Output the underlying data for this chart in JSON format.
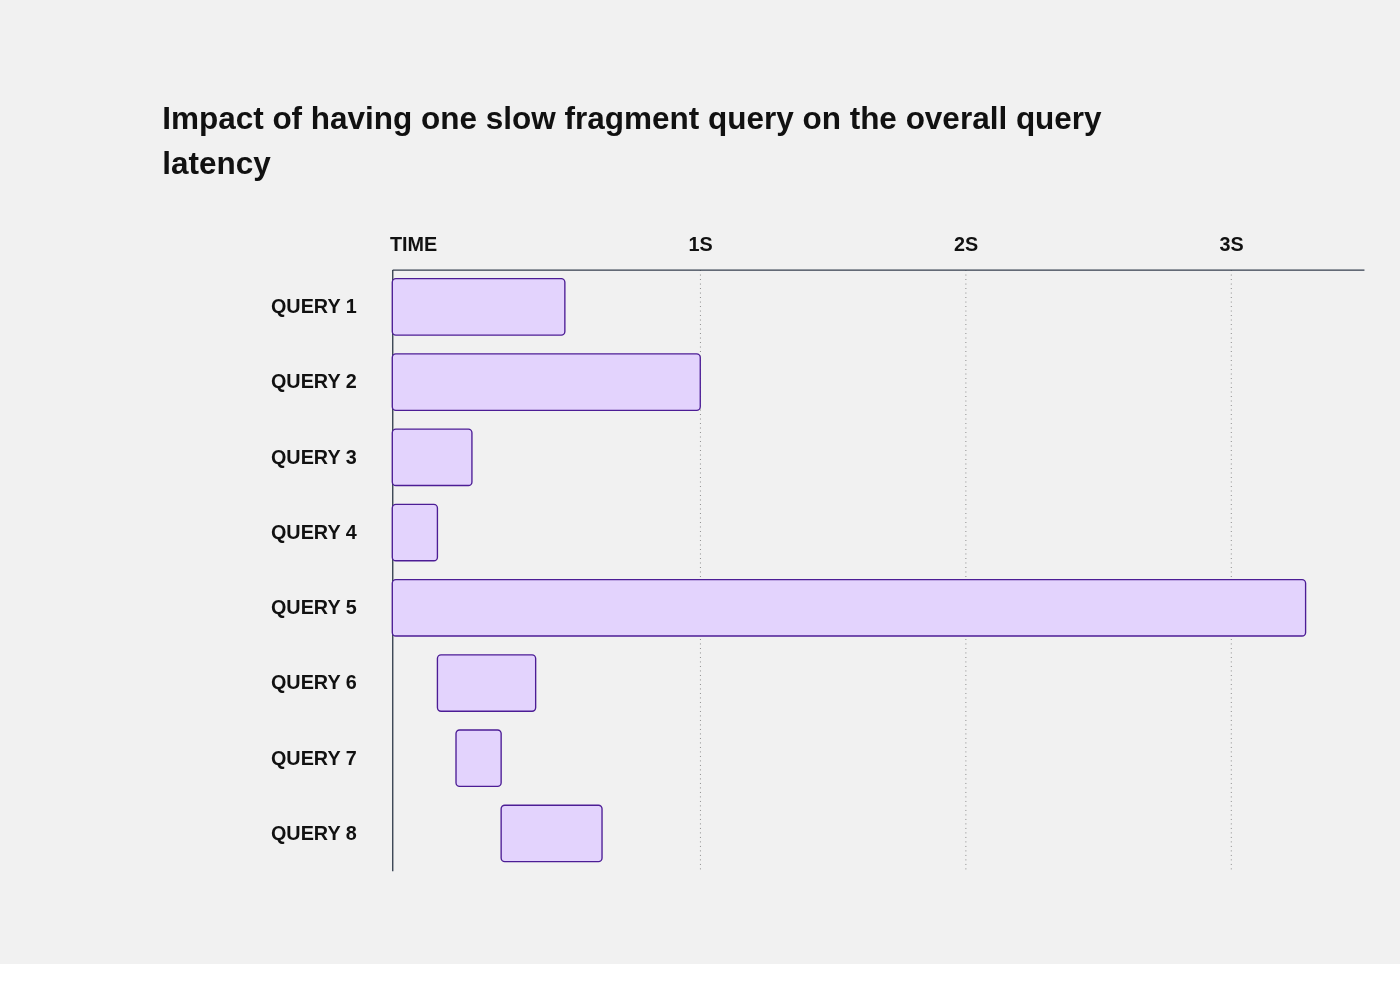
{
  "chart_data": {
    "type": "bar",
    "orientation": "horizontal",
    "title": "Impact of having one slow fragment query on the overall query latency",
    "xlabel": "TIME",
    "categories": [
      "QUERY 1",
      "QUERY 2",
      "QUERY 3",
      "QUERY 4",
      "QUERY 5",
      "QUERY 6",
      "QUERY 7",
      "QUERY 8"
    ],
    "base": [
      -0.16,
      -0.16,
      -0.16,
      -0.16,
      -0.16,
      0.01,
      0.08,
      0.25
    ],
    "values": [
      0.65,
      1.16,
      0.3,
      0.17,
      3.44,
      0.37,
      0.17,
      0.38
    ],
    "color": "#e3d3fd",
    "xlim": [
      -0.16,
      3.5
    ],
    "xticks": [
      {
        "value": 1,
        "label": "1S"
      },
      {
        "value": 2,
        "label": "2S"
      },
      {
        "value": 3,
        "label": "3S"
      }
    ],
    "grid": "x",
    "line_style": "dotted"
  }
}
